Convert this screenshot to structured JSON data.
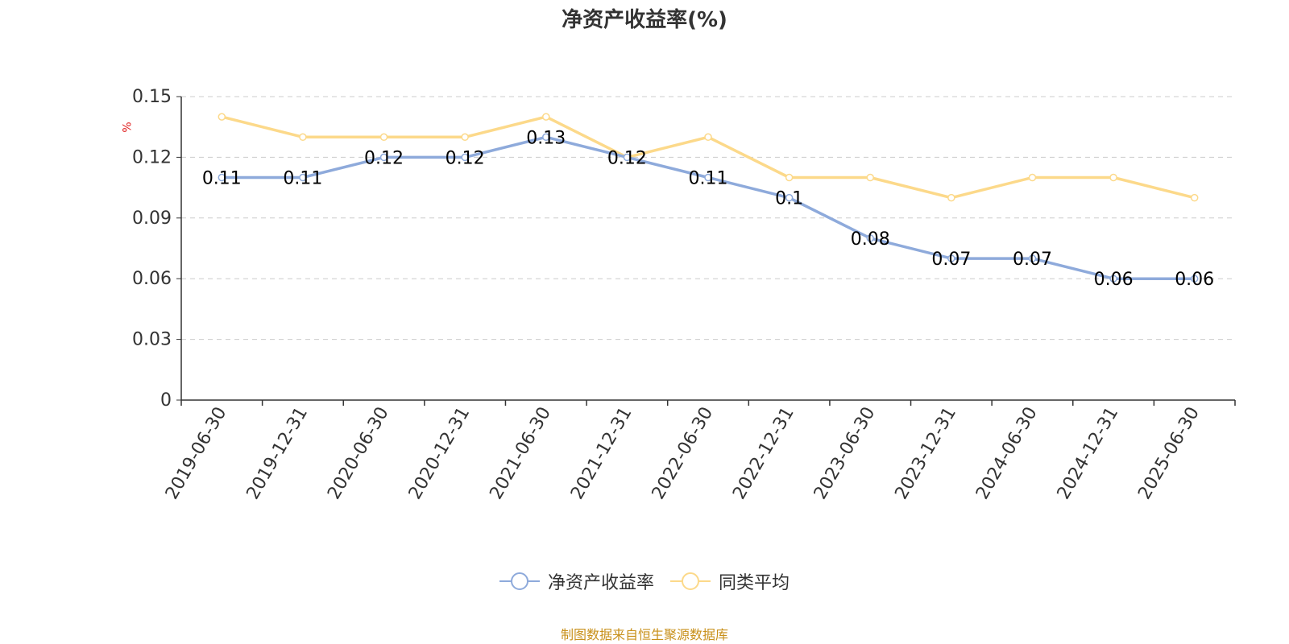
{
  "chart_data": {
    "type": "line",
    "title": "净资产收益率(%)",
    "ylabel": "%",
    "categories": [
      "2019-06-30",
      "2019-12-31",
      "2020-06-30",
      "2020-12-31",
      "2021-06-30",
      "2021-12-31",
      "2022-06-30",
      "2022-12-31",
      "2023-06-30",
      "2023-12-31",
      "2024-06-30",
      "2024-12-31",
      "2025-06-30"
    ],
    "yticks": [
      "0",
      "0.03",
      "0.06",
      "0.09",
      "0.12",
      "0.15"
    ],
    "ylim": [
      0,
      0.15
    ],
    "grid": true,
    "legend_position": "bottom",
    "series": [
      {
        "name": "净资产收益率",
        "color": "#8eaadb",
        "values": [
          0.11,
          0.11,
          0.12,
          0.12,
          0.13,
          0.12,
          0.11,
          0.1,
          0.08,
          0.07,
          0.07,
          0.06,
          0.06
        ],
        "labels": [
          "0.11",
          "0.11",
          "0.12",
          "0.12",
          "0.13",
          "0.12",
          "0.11",
          "0.1",
          "0.08",
          "0.07",
          "0.07",
          "0.06",
          "0.06"
        ]
      },
      {
        "name": "同类平均",
        "color": "#fcd98a",
        "values": [
          0.14,
          0.13,
          0.13,
          0.13,
          0.14,
          0.12,
          0.13,
          0.11,
          0.11,
          0.1,
          0.11,
          0.11,
          0.1
        ]
      }
    ]
  },
  "footer": "制图数据来自恒生聚源数据库"
}
